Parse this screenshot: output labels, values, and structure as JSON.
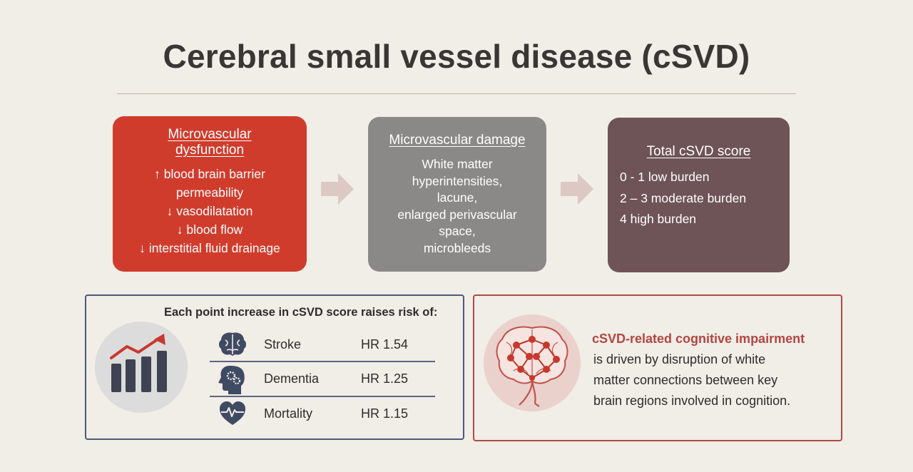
{
  "title": "Cerebral small vessel disease (cSVD)",
  "colors": {
    "background": "#f1ede7",
    "box1": "#d03c2c",
    "box2": "#8b8987",
    "box3": "#6e5457",
    "risk_border": "#4c5a78",
    "cog_border": "#b04a44",
    "accent_red": "#b24640"
  },
  "flow": [
    {
      "heading_lines": [
        "Microvascular",
        "dysfunction"
      ],
      "lines": [
        "↑ blood brain barrier",
        "permeability",
        "↓ vasodilatation",
        "↓ blood flow",
        "↓ interstitial fluid drainage"
      ]
    },
    {
      "heading_lines": [
        "Microvascular damage"
      ],
      "lines": [
        "White matter",
        "hyperintensities,",
        "lacune,",
        "enlarged perivascular",
        "space,",
        "microbleeds"
      ]
    },
    {
      "heading_lines": [
        "Total cSVD score"
      ],
      "lines": [
        "0 - 1 low burden",
        "2 – 3 moderate burden",
        "4 high burden"
      ]
    }
  ],
  "risk": {
    "heading": "Each point increase in cSVD score raises risk of:",
    "chart_icon": "bar-chart-rising-arrow-icon",
    "items": [
      {
        "label": "Stroke",
        "value": "HR 1.54",
        "icon": "brain-icon"
      },
      {
        "label": "Dementia",
        "value": "HR 1.25",
        "icon": "head-gears-icon"
      },
      {
        "label": "Mortality",
        "value": "HR 1.15",
        "icon": "heart-pulse-icon"
      }
    ]
  },
  "cognition": {
    "icon": "brain-network-icon",
    "title": "cSVD-related cognitive impairment",
    "lines": [
      "is driven by disruption of white",
      "matter connections between key",
      "brain regions involved in cognition."
    ]
  }
}
